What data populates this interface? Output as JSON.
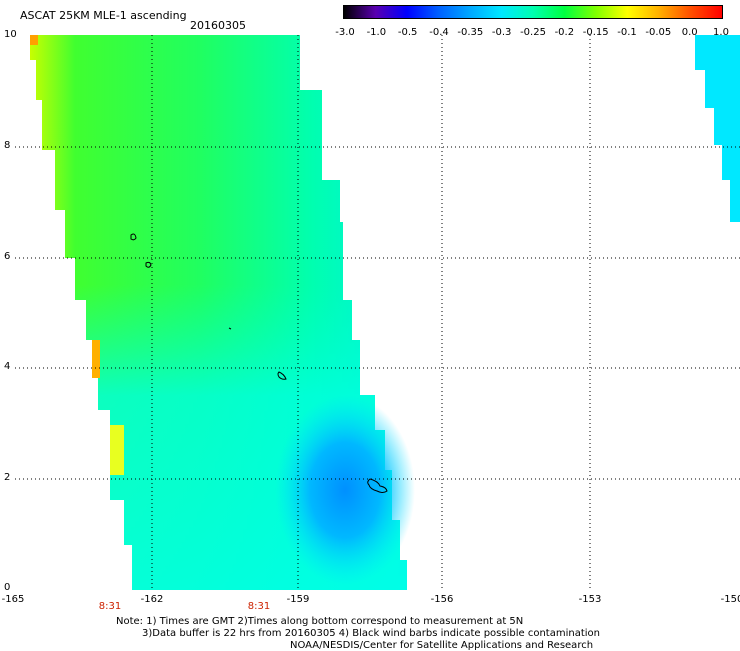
{
  "title": "ASCAT 25KM MLE-1 ascending",
  "date": "20160305",
  "colorbar": {
    "labels": [
      "-3.0",
      "-1.0",
      "-0.5",
      "-0.4",
      "-0.35",
      "-0.3",
      "-0.25",
      "-0.2",
      "-0.15",
      "-0.1",
      "-0.05",
      "0.0",
      "1.0"
    ],
    "colors": [
      "#000000",
      "#5a00b0",
      "#0000ff",
      "#0060ff",
      "#00a8ff",
      "#00e8ff",
      "#00ffb0",
      "#00ff40",
      "#80ff00",
      "#ffff00",
      "#ffb000",
      "#ff5000",
      "#ff0000"
    ]
  },
  "axes": {
    "y_ticks": [
      "10",
      "8",
      "6",
      "4",
      "2",
      "0"
    ],
    "x_ticks": [
      "-165",
      "-162",
      "-159",
      "-156",
      "-153",
      "-150"
    ],
    "x_range": [
      -165,
      -150
    ],
    "y_range": [
      0,
      10
    ]
  },
  "times": [
    "8:31",
    "8:31"
  ],
  "notes": {
    "line1": "Note: 1) Times are GMT 2)Times along bottom correspond to measurement at 5N",
    "line2": "3)Data buffer is 22 hrs from 20160305 4) Black wind barbs indicate possible contamination",
    "line3": "NOAA/NESDIS/Center for Satellite Applications and Research"
  }
}
